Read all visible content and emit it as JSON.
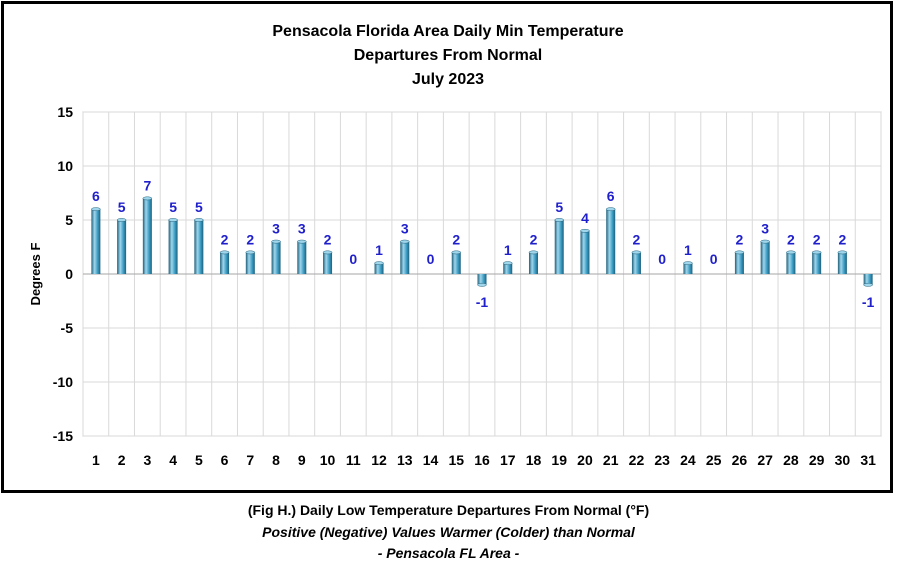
{
  "chart_data": {
    "type": "bar",
    "title": [
      "Pensacola Florida Area Daily Min Temperature",
      "Departures From Normal",
      "July 2023"
    ],
    "ylabel": "Degrees F",
    "xlabel": "",
    "ylim": [
      -15,
      15
    ],
    "yticks": [
      15,
      10,
      5,
      0,
      -5,
      -10,
      -15
    ],
    "grid": true,
    "categories": [
      "1",
      "2",
      "3",
      "4",
      "5",
      "6",
      "7",
      "8",
      "9",
      "10",
      "11",
      "12",
      "13",
      "14",
      "15",
      "16",
      "17",
      "18",
      "19",
      "20",
      "21",
      "22",
      "23",
      "24",
      "25",
      "26",
      "27",
      "28",
      "29",
      "30",
      "31"
    ],
    "values": [
      6,
      5,
      7,
      5,
      5,
      2,
      2,
      3,
      3,
      2,
      0,
      1,
      3,
      0,
      2,
      -1,
      1,
      2,
      5,
      4,
      6,
      2,
      0,
      1,
      0,
      2,
      3,
      2,
      2,
      2,
      -1
    ],
    "data_labels": true,
    "colors": {
      "bar": "#3a9cc4",
      "bar_dark": "#1f5f7a",
      "bar_light": "#9fd6ec",
      "label": "#1f1fcc",
      "grid": "#d9d9d9"
    }
  },
  "caption": {
    "line1": "(Fig H.) Daily Low Temperature Departures From Normal (°F)",
    "line2": "Positive (Negative) Values Warmer (Colder) than Normal",
    "line3": "- Pensacola FL Area -"
  }
}
